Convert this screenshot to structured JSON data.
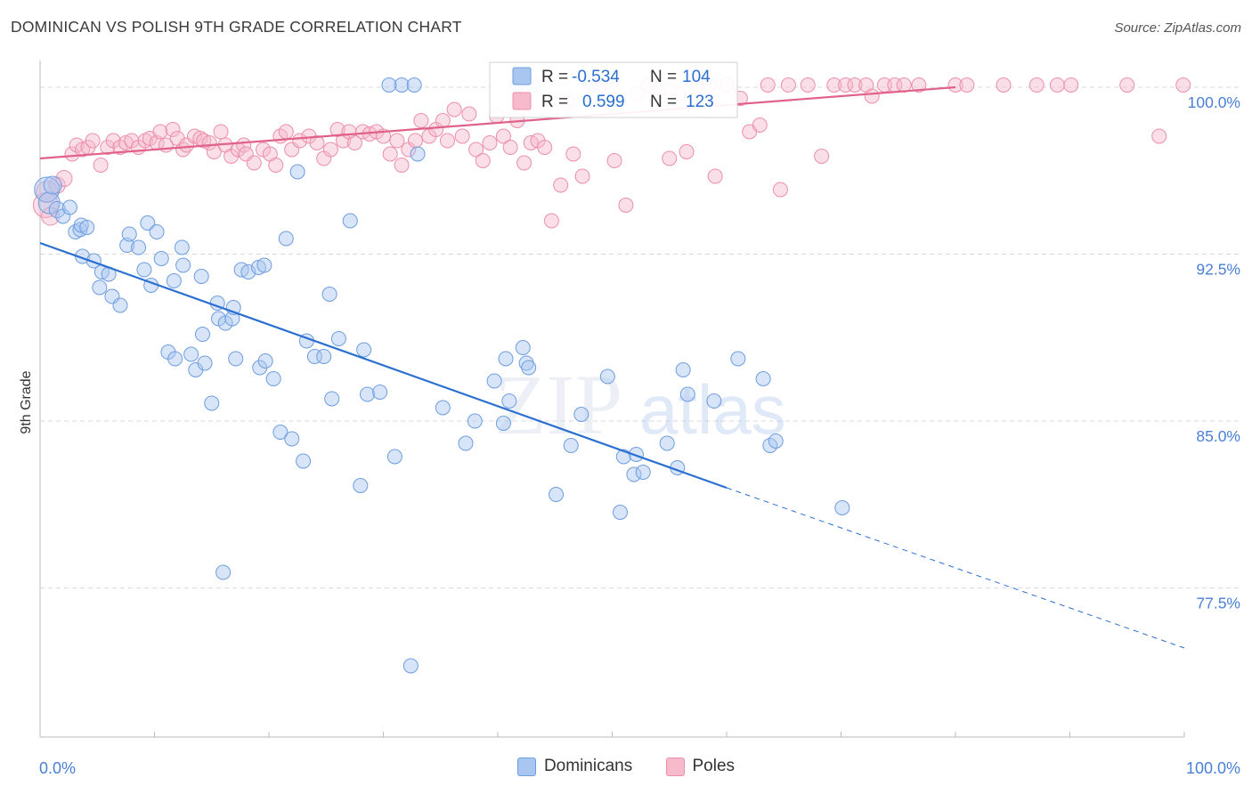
{
  "header": {
    "title": "DOMINICAN VS POLISH 9TH GRADE CORRELATION CHART",
    "source": "Source: ZipAtlas.com"
  },
  "watermark": {
    "zip": "ZIP",
    "atlas": "atlas"
  },
  "colors": {
    "blue_fill": "#a9c6f0",
    "blue_stroke": "#6e9ee0",
    "blue_line": "#2b6fd0",
    "pink_fill": "#f7b9cc",
    "pink_stroke": "#ec8fab",
    "pink_line": "#e0628a",
    "tick_label": "#4a7fd6",
    "grid": "#d9d9d9"
  },
  "legend_box": {
    "rows": [
      {
        "r_label": "R = ",
        "r_value": "-0.534",
        "n_label": "N = ",
        "n_value": "104",
        "series": "blue"
      },
      {
        "r_label": "R = ",
        "r_value": "0.599",
        "n_label": "N = ",
        "n_value": "123",
        "series": "pink"
      }
    ]
  },
  "chart_data": {
    "type": "scatter",
    "title": "DOMINICAN VS POLISH 9TH GRADE CORRELATION CHART",
    "xlabel": "",
    "ylabel": "9th Grade",
    "xlim": [
      0,
      100
    ],
    "ylim": [
      70.8,
      101.2
    ],
    "x_tick_labels": [
      "0.0%",
      "100.0%"
    ],
    "y_ticks": [
      77.5,
      85.0,
      92.5,
      100.0
    ],
    "y_tick_labels": [
      "77.5%",
      "85.0%",
      "92.5%",
      "100.0%"
    ],
    "grid": true,
    "legend_position": "bottom",
    "series": [
      {
        "name": "Dominicans",
        "color": "#a9c6f0",
        "trend": {
          "x": [
            0,
            60
          ],
          "y": [
            93.0,
            82.0
          ]
        },
        "trend_dashed": {
          "x": [
            60,
            100
          ],
          "y": [
            82.0,
            74.8
          ]
        },
        "points": [
          [
            0.6,
            95.4,
            14
          ],
          [
            0.8,
            94.8,
            12
          ],
          [
            1.1,
            95.6,
            10
          ],
          [
            1.5,
            94.5,
            9
          ],
          [
            2.0,
            94.2,
            8
          ],
          [
            2.6,
            94.6,
            8
          ],
          [
            3.1,
            93.5,
            8
          ],
          [
            3.5,
            93.6,
            8
          ],
          [
            3.6,
            93.8,
            8
          ],
          [
            4.1,
            93.7,
            8
          ],
          [
            3.7,
            92.4,
            8
          ],
          [
            4.7,
            92.2,
            8
          ],
          [
            5.2,
            91.0,
            8
          ],
          [
            5.4,
            91.7,
            8
          ],
          [
            6.0,
            91.6,
            8
          ],
          [
            6.3,
            90.6,
            8
          ],
          [
            7.0,
            90.2,
            8
          ],
          [
            7.6,
            92.9,
            8
          ],
          [
            7.8,
            93.4,
            8
          ],
          [
            8.6,
            92.8,
            8
          ],
          [
            9.1,
            91.8,
            8
          ],
          [
            9.4,
            93.9,
            8
          ],
          [
            9.7,
            91.1,
            8
          ],
          [
            10.2,
            93.5,
            8
          ],
          [
            10.6,
            92.3,
            8
          ],
          [
            11.2,
            88.1,
            8
          ],
          [
            11.7,
            91.3,
            8
          ],
          [
            11.8,
            87.8,
            8
          ],
          [
            12.4,
            92.8,
            8
          ],
          [
            12.5,
            92.0,
            8
          ],
          [
            13.2,
            88.0,
            8
          ],
          [
            13.6,
            87.3,
            8
          ],
          [
            14.2,
            88.9,
            8
          ],
          [
            14.4,
            87.6,
            8
          ],
          [
            14.1,
            91.5,
            8
          ],
          [
            15.0,
            85.8,
            8
          ],
          [
            15.5,
            90.3,
            8
          ],
          [
            15.6,
            89.6,
            8
          ],
          [
            16.2,
            89.4,
            8
          ],
          [
            16.8,
            89.6,
            8
          ],
          [
            16.9,
            90.1,
            8
          ],
          [
            17.1,
            87.8,
            8
          ],
          [
            17.6,
            91.8,
            8
          ],
          [
            18.2,
            91.7,
            8
          ],
          [
            19.1,
            91.9,
            8
          ],
          [
            19.6,
            92.0,
            8
          ],
          [
            19.2,
            87.4,
            8
          ],
          [
            19.7,
            87.7,
            8
          ],
          [
            20.4,
            86.9,
            8
          ],
          [
            21.0,
            84.5,
            8
          ],
          [
            21.5,
            93.2,
            8
          ],
          [
            22.0,
            84.2,
            8
          ],
          [
            22.5,
            96.2,
            8
          ],
          [
            23.0,
            83.2,
            8
          ],
          [
            23.3,
            88.6,
            8
          ],
          [
            24.0,
            87.9,
            8
          ],
          [
            24.8,
            87.9,
            8
          ],
          [
            26.1,
            88.7,
            8
          ],
          [
            25.5,
            86.0,
            8
          ],
          [
            25.3,
            90.7,
            8
          ],
          [
            27.1,
            94.0,
            8
          ],
          [
            28.0,
            82.1,
            8
          ],
          [
            28.6,
            86.2,
            8
          ],
          [
            28.3,
            88.2,
            8
          ],
          [
            29.7,
            86.3,
            8
          ],
          [
            31.0,
            83.4,
            8
          ],
          [
            31.6,
            100.1,
            8
          ],
          [
            30.5,
            100.1,
            8
          ],
          [
            32.7,
            100.1,
            8
          ],
          [
            33.0,
            97.0,
            8
          ],
          [
            35.2,
            85.6,
            8
          ],
          [
            37.2,
            84.0,
            8
          ],
          [
            38.0,
            85.0,
            8
          ],
          [
            39.7,
            86.8,
            8
          ],
          [
            40.5,
            84.9,
            8
          ],
          [
            40.7,
            87.8,
            8
          ],
          [
            41.0,
            85.9,
            8
          ],
          [
            42.2,
            88.3,
            8
          ],
          [
            42.5,
            87.6,
            8
          ],
          [
            42.7,
            87.4,
            8
          ],
          [
            41.7,
            100.1,
            8
          ],
          [
            43.1,
            100.1,
            8
          ],
          [
            45.1,
            81.7,
            8
          ],
          [
            46.4,
            83.9,
            8
          ],
          [
            47.3,
            85.3,
            8
          ],
          [
            49.6,
            87.0,
            8
          ],
          [
            50.7,
            80.9,
            8
          ],
          [
            51.0,
            83.4,
            8
          ],
          [
            51.9,
            82.6,
            8
          ],
          [
            52.1,
            83.5,
            8
          ],
          [
            52.7,
            82.7,
            8
          ],
          [
            54.8,
            84.0,
            8
          ],
          [
            55.7,
            82.9,
            8
          ],
          [
            56.2,
            87.3,
            8
          ],
          [
            56.6,
            86.2,
            8
          ],
          [
            58.9,
            85.9,
            8
          ],
          [
            61.0,
            87.8,
            8
          ],
          [
            63.2,
            86.9,
            8
          ],
          [
            63.8,
            83.9,
            8
          ],
          [
            64.3,
            84.1,
            8
          ],
          [
            70.1,
            81.1,
            8
          ],
          [
            16.0,
            78.2,
            8
          ],
          [
            32.4,
            74.0,
            8
          ],
          [
            48.4,
            100.1,
            8
          ]
        ]
      },
      {
        "name": "Poles",
        "color": "#f7b9cc",
        "trend": {
          "x": [
            0,
            80
          ],
          "y": [
            96.8,
            100.0
          ]
        },
        "points": [
          [
            0.5,
            94.7,
            14
          ],
          [
            0.6,
            95.3,
            12
          ],
          [
            0.9,
            94.2,
            10
          ],
          [
            1.5,
            95.6,
            9
          ],
          [
            2.1,
            95.9,
            9
          ],
          [
            2.8,
            97.0,
            8
          ],
          [
            3.2,
            97.4,
            8
          ],
          [
            3.7,
            97.2,
            8
          ],
          [
            4.2,
            97.3,
            8
          ],
          [
            4.6,
            97.6,
            8
          ],
          [
            5.3,
            96.5,
            8
          ],
          [
            5.9,
            97.3,
            8
          ],
          [
            6.4,
            97.6,
            8
          ],
          [
            7.0,
            97.3,
            8
          ],
          [
            7.5,
            97.5,
            8
          ],
          [
            8.0,
            97.6,
            8
          ],
          [
            8.6,
            97.3,
            8
          ],
          [
            9.2,
            97.6,
            8
          ],
          [
            9.6,
            97.7,
            8
          ],
          [
            10.2,
            97.5,
            8
          ],
          [
            10.5,
            98.0,
            8
          ],
          [
            11.0,
            97.4,
            8
          ],
          [
            11.6,
            98.1,
            8
          ],
          [
            12.0,
            97.7,
            8
          ],
          [
            12.5,
            97.2,
            8
          ],
          [
            12.8,
            97.4,
            8
          ],
          [
            13.5,
            97.8,
            8
          ],
          [
            14.0,
            97.7,
            8
          ],
          [
            14.3,
            97.6,
            8
          ],
          [
            14.8,
            97.5,
            8
          ],
          [
            15.2,
            97.1,
            8
          ],
          [
            15.8,
            98.0,
            8
          ],
          [
            16.2,
            97.4,
            8
          ],
          [
            16.7,
            96.9,
            8
          ],
          [
            17.3,
            97.2,
            8
          ],
          [
            17.8,
            97.4,
            8
          ],
          [
            18.0,
            97.0,
            8
          ],
          [
            18.7,
            96.6,
            8
          ],
          [
            19.5,
            97.2,
            8
          ],
          [
            20.1,
            97.0,
            8
          ],
          [
            20.6,
            96.5,
            8
          ],
          [
            21.0,
            97.8,
            8
          ],
          [
            21.5,
            98.0,
            8
          ],
          [
            22.0,
            97.2,
            8
          ],
          [
            22.7,
            97.6,
            8
          ],
          [
            23.5,
            97.8,
            8
          ],
          [
            24.2,
            97.5,
            8
          ],
          [
            24.8,
            96.8,
            8
          ],
          [
            25.4,
            97.2,
            8
          ],
          [
            26.0,
            98.1,
            8
          ],
          [
            26.5,
            97.6,
            8
          ],
          [
            27.0,
            98.0,
            8
          ],
          [
            27.5,
            97.5,
            8
          ],
          [
            28.2,
            98.0,
            8
          ],
          [
            28.8,
            97.9,
            8
          ],
          [
            29.4,
            98.0,
            8
          ],
          [
            30.0,
            97.8,
            8
          ],
          [
            30.6,
            97.0,
            8
          ],
          [
            31.2,
            97.6,
            8
          ],
          [
            31.6,
            96.5,
            8
          ],
          [
            32.2,
            97.2,
            8
          ],
          [
            32.8,
            97.6,
            8
          ],
          [
            33.3,
            98.5,
            8
          ],
          [
            34.0,
            97.8,
            8
          ],
          [
            34.6,
            98.1,
            8
          ],
          [
            35.2,
            98.5,
            8
          ],
          [
            35.6,
            97.6,
            8
          ],
          [
            36.2,
            99.0,
            8
          ],
          [
            36.9,
            97.8,
            8
          ],
          [
            37.5,
            98.8,
            8
          ],
          [
            38.1,
            97.2,
            8
          ],
          [
            38.7,
            96.7,
            8
          ],
          [
            39.3,
            97.5,
            8
          ],
          [
            39.9,
            98.7,
            8
          ],
          [
            40.5,
            97.8,
            8
          ],
          [
            41.1,
            97.3,
            8
          ],
          [
            41.7,
            98.5,
            8
          ],
          [
            42.3,
            96.6,
            8
          ],
          [
            42.9,
            97.5,
            8
          ],
          [
            43.5,
            97.6,
            8
          ],
          [
            44.1,
            97.3,
            8
          ],
          [
            44.7,
            94.0,
            8
          ],
          [
            45.5,
            95.6,
            8
          ],
          [
            46.1,
            99.3,
            8
          ],
          [
            46.6,
            97.0,
            8
          ],
          [
            47.4,
            96.0,
            8
          ],
          [
            48.0,
            100.1,
            8
          ],
          [
            49.0,
            100.1,
            8
          ],
          [
            49.8,
            100.1,
            8
          ],
          [
            50.2,
            96.7,
            8
          ],
          [
            51.2,
            94.7,
            8
          ],
          [
            52.2,
            99.7,
            8
          ],
          [
            53.2,
            100.1,
            8
          ],
          [
            54.0,
            99.8,
            8
          ],
          [
            55.0,
            96.8,
            8
          ],
          [
            55.8,
            99.7,
            8
          ],
          [
            56.5,
            97.1,
            8
          ],
          [
            57.5,
            100.1,
            8
          ],
          [
            58.5,
            100.1,
            8
          ],
          [
            59.0,
            96.0,
            8
          ],
          [
            60.0,
            100.1,
            8
          ],
          [
            61.2,
            99.5,
            8
          ],
          [
            62.0,
            98.0,
            8
          ],
          [
            62.9,
            98.3,
            8
          ],
          [
            63.6,
            100.1,
            8
          ],
          [
            64.7,
            95.4,
            8
          ],
          [
            65.4,
            100.1,
            8
          ],
          [
            67.1,
            100.1,
            8
          ],
          [
            68.3,
            96.9,
            8
          ],
          [
            69.4,
            100.1,
            8
          ],
          [
            70.4,
            100.1,
            8
          ],
          [
            71.2,
            100.1,
            8
          ],
          [
            72.2,
            100.1,
            8
          ],
          [
            72.7,
            99.6,
            8
          ],
          [
            73.8,
            100.1,
            8
          ],
          [
            74.7,
            100.1,
            8
          ],
          [
            75.5,
            100.1,
            8
          ],
          [
            76.8,
            100.1,
            8
          ],
          [
            80.0,
            100.1,
            8
          ],
          [
            81.0,
            100.1,
            8
          ],
          [
            84.2,
            100.1,
            8
          ],
          [
            87.1,
            100.1,
            8
          ],
          [
            88.9,
            100.1,
            8
          ],
          [
            90.1,
            100.1,
            8
          ],
          [
            95.0,
            100.1,
            8
          ],
          [
            97.8,
            97.8,
            8
          ],
          [
            99.9,
            100.1,
            8
          ]
        ]
      }
    ]
  }
}
